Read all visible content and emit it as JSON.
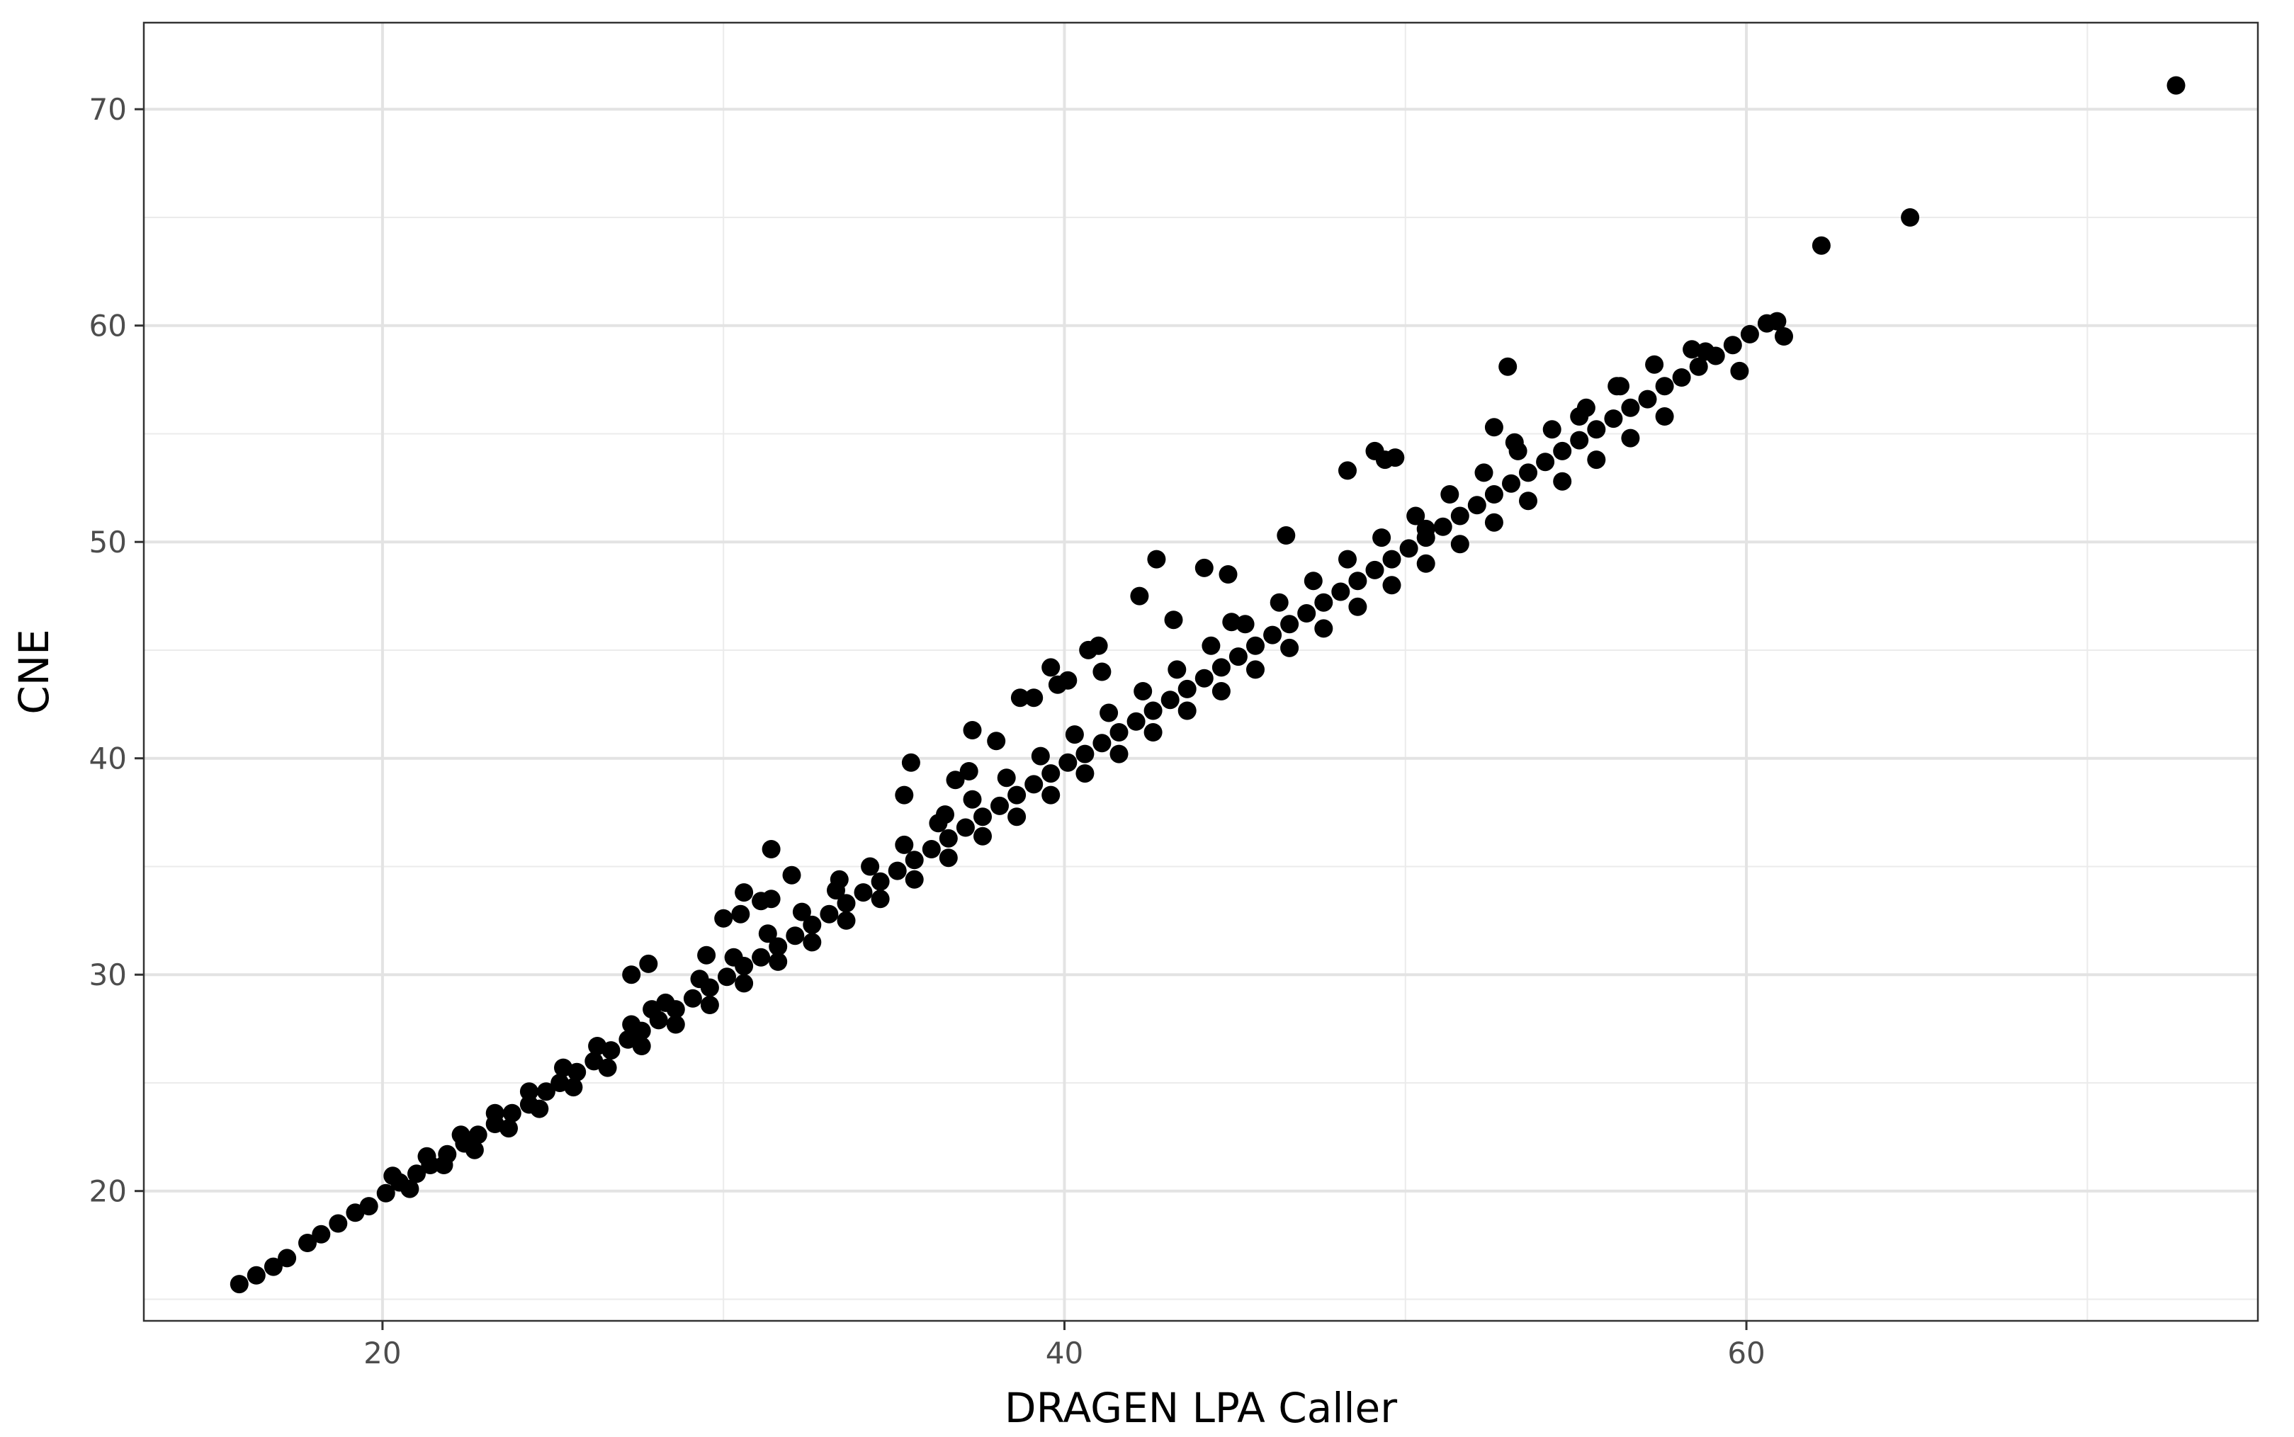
{
  "chart_data": {
    "type": "scatter",
    "xlabel": "DRAGEN LPA Caller",
    "ylabel": "CNE",
    "xlim": [
      13,
      75
    ],
    "ylim": [
      14,
      74
    ],
    "x_major_ticks": [
      20,
      40,
      60
    ],
    "x_minor_ticks": [
      30,
      50,
      70
    ],
    "y_major_ticks": [
      20,
      30,
      40,
      50,
      60,
      70
    ],
    "y_minor_ticks": [
      15,
      25,
      35,
      45,
      55,
      65
    ],
    "grid": true,
    "legend": "none",
    "point_color": "#000000",
    "points": [
      [
        15.8,
        15.7
      ],
      [
        16.3,
        16.1
      ],
      [
        16.8,
        16.5
      ],
      [
        17.2,
        16.9
      ],
      [
        17.8,
        17.6
      ],
      [
        18.2,
        18.0
      ],
      [
        18.7,
        18.5
      ],
      [
        19.2,
        19.0
      ],
      [
        19.6,
        19.3
      ],
      [
        20.1,
        19.9
      ],
      [
        20.5,
        20.4
      ],
      [
        21.0,
        20.8
      ],
      [
        21.4,
        21.2
      ],
      [
        21.9,
        21.7
      ],
      [
        22.4,
        22.2
      ],
      [
        22.8,
        22.6
      ],
      [
        23.3,
        23.1
      ],
      [
        23.8,
        23.6
      ],
      [
        24.3,
        24.0
      ],
      [
        24.8,
        24.6
      ],
      [
        25.2,
        25.0
      ],
      [
        25.7,
        25.5
      ],
      [
        26.2,
        26.0
      ],
      [
        26.7,
        26.5
      ],
      [
        27.2,
        27.0
      ],
      [
        27.6,
        27.4
      ],
      [
        28.1,
        27.9
      ],
      [
        28.6,
        28.4
      ],
      [
        29.1,
        28.9
      ],
      [
        29.6,
        29.4
      ],
      [
        30.1,
        29.9
      ],
      [
        30.6,
        30.4
      ],
      [
        31.1,
        30.8
      ],
      [
        31.6,
        31.3
      ],
      [
        32.1,
        31.8
      ],
      [
        32.6,
        32.3
      ],
      [
        33.1,
        32.8
      ],
      [
        33.6,
        33.3
      ],
      [
        34.1,
        33.8
      ],
      [
        34.6,
        34.3
      ],
      [
        35.1,
        34.8
      ],
      [
        35.6,
        35.3
      ],
      [
        36.1,
        35.8
      ],
      [
        36.6,
        36.3
      ],
      [
        37.1,
        36.8
      ],
      [
        37.6,
        37.3
      ],
      [
        38.1,
        37.8
      ],
      [
        38.6,
        38.3
      ],
      [
        39.1,
        38.8
      ],
      [
        39.6,
        39.3
      ],
      [
        40.1,
        39.8
      ],
      [
        40.6,
        40.2
      ],
      [
        41.1,
        40.7
      ],
      [
        41.6,
        41.2
      ],
      [
        42.1,
        41.7
      ],
      [
        42.6,
        42.2
      ],
      [
        43.1,
        42.7
      ],
      [
        43.6,
        43.2
      ],
      [
        44.1,
        43.7
      ],
      [
        44.6,
        44.2
      ],
      [
        45.1,
        44.7
      ],
      [
        45.6,
        45.2
      ],
      [
        46.1,
        45.7
      ],
      [
        46.6,
        46.2
      ],
      [
        47.1,
        46.7
      ],
      [
        47.6,
        47.2
      ],
      [
        48.1,
        47.7
      ],
      [
        48.6,
        48.2
      ],
      [
        49.1,
        48.7
      ],
      [
        49.6,
        49.2
      ],
      [
        50.1,
        49.7
      ],
      [
        50.6,
        50.2
      ],
      [
        51.1,
        50.7
      ],
      [
        51.6,
        51.2
      ],
      [
        52.1,
        51.7
      ],
      [
        52.6,
        52.2
      ],
      [
        53.1,
        52.7
      ],
      [
        53.6,
        53.2
      ],
      [
        54.1,
        53.7
      ],
      [
        54.6,
        54.2
      ],
      [
        55.1,
        54.7
      ],
      [
        55.6,
        55.2
      ],
      [
        56.1,
        55.7
      ],
      [
        56.6,
        56.2
      ],
      [
        57.1,
        56.6
      ],
      [
        57.6,
        57.2
      ],
      [
        58.1,
        57.6
      ],
      [
        58.6,
        58.1
      ],
      [
        59.1,
        58.6
      ],
      [
        59.6,
        59.1
      ],
      [
        60.1,
        59.6
      ],
      [
        60.6,
        60.1
      ],
      [
        61.1,
        59.5
      ],
      [
        20.8,
        20.1
      ],
      [
        21.8,
        21.2
      ],
      [
        22.7,
        21.9
      ],
      [
        23.7,
        22.9
      ],
      [
        24.6,
        23.8
      ],
      [
        25.6,
        24.8
      ],
      [
        26.6,
        25.7
      ],
      [
        27.6,
        26.7
      ],
      [
        28.6,
        27.7
      ],
      [
        29.6,
        28.6
      ],
      [
        30.6,
        29.6
      ],
      [
        31.6,
        30.6
      ],
      [
        32.6,
        31.5
      ],
      [
        33.6,
        32.5
      ],
      [
        34.6,
        33.5
      ],
      [
        35.6,
        34.4
      ],
      [
        36.6,
        35.4
      ],
      [
        37.6,
        36.4
      ],
      [
        38.6,
        37.3
      ],
      [
        39.6,
        38.3
      ],
      [
        40.6,
        39.3
      ],
      [
        41.6,
        40.2
      ],
      [
        42.6,
        41.2
      ],
      [
        43.6,
        42.2
      ],
      [
        44.6,
        43.1
      ],
      [
        45.6,
        44.1
      ],
      [
        46.6,
        45.1
      ],
      [
        47.6,
        46.0
      ],
      [
        48.6,
        47.0
      ],
      [
        49.6,
        48.0
      ],
      [
        50.6,
        49.0
      ],
      [
        51.6,
        49.9
      ],
      [
        52.6,
        50.9
      ],
      [
        53.6,
        51.9
      ],
      [
        54.6,
        52.8
      ],
      [
        55.6,
        53.8
      ],
      [
        56.6,
        54.8
      ],
      [
        57.6,
        55.8
      ],
      [
        20.3,
        20.7
      ],
      [
        21.3,
        21.6
      ],
      [
        22.3,
        22.6
      ],
      [
        23.3,
        23.6
      ],
      [
        24.3,
        24.6
      ],
      [
        25.3,
        25.7
      ],
      [
        26.3,
        26.7
      ],
      [
        27.3,
        27.7
      ],
      [
        28.3,
        28.7
      ],
      [
        29.3,
        29.8
      ],
      [
        30.3,
        30.8
      ],
      [
        31.3,
        31.9
      ],
      [
        32.3,
        32.9
      ],
      [
        33.3,
        33.9
      ],
      [
        34.3,
        35.0
      ],
      [
        35.3,
        36.0
      ],
      [
        36.3,
        37.0
      ],
      [
        37.3,
        38.1
      ],
      [
        38.3,
        39.1
      ],
      [
        39.3,
        40.1
      ],
      [
        40.3,
        41.1
      ],
      [
        41.3,
        42.1
      ],
      [
        42.3,
        43.1
      ],
      [
        43.3,
        44.1
      ],
      [
        44.3,
        45.2
      ],
      [
        45.3,
        46.2
      ],
      [
        46.3,
        47.2
      ],
      [
        47.3,
        48.2
      ],
      [
        48.3,
        49.2
      ],
      [
        49.3,
        50.2
      ],
      [
        50.3,
        51.2
      ],
      [
        51.3,
        52.2
      ],
      [
        52.3,
        53.2
      ],
      [
        53.3,
        54.2
      ],
      [
        54.3,
        55.2
      ],
      [
        55.3,
        56.2
      ],
      [
        56.3,
        57.2
      ],
      [
        57.3,
        58.2
      ],
      [
        27.3,
        30.0
      ],
      [
        27.8,
        30.5
      ],
      [
        29.5,
        30.9
      ],
      [
        30.0,
        32.6
      ],
      [
        30.5,
        32.8
      ],
      [
        30.6,
        33.8
      ],
      [
        31.1,
        33.4
      ],
      [
        31.4,
        33.5
      ],
      [
        31.4,
        35.8
      ],
      [
        32.0,
        34.6
      ],
      [
        35.3,
        38.3
      ],
      [
        35.5,
        39.8
      ],
      [
        36.8,
        39.0
      ],
      [
        37.2,
        39.4
      ],
      [
        37.3,
        41.3
      ],
      [
        38.0,
        40.8
      ],
      [
        38.7,
        42.8
      ],
      [
        39.1,
        42.8
      ],
      [
        39.6,
        44.2
      ],
      [
        39.8,
        43.4
      ],
      [
        40.1,
        43.6
      ],
      [
        40.7,
        45.0
      ],
      [
        41.0,
        45.2
      ],
      [
        41.1,
        44.0
      ],
      [
        42.2,
        47.5
      ],
      [
        42.7,
        49.2
      ],
      [
        43.2,
        46.4
      ],
      [
        44.1,
        48.8
      ],
      [
        44.8,
        48.5
      ],
      [
        46.5,
        50.3
      ],
      [
        48.3,
        53.3
      ],
      [
        49.1,
        54.2
      ],
      [
        49.4,
        53.8
      ],
      [
        49.7,
        53.9
      ],
      [
        50.6,
        50.6
      ],
      [
        52.6,
        55.3
      ],
      [
        53.0,
        58.1
      ],
      [
        53.2,
        54.6
      ],
      [
        55.1,
        55.8
      ],
      [
        56.2,
        57.2
      ],
      [
        58.4,
        58.9
      ],
      [
        58.8,
        58.8
      ],
      [
        59.8,
        57.9
      ],
      [
        60.9,
        60.2
      ],
      [
        27.9,
        28.4
      ],
      [
        36.5,
        37.4
      ],
      [
        33.4,
        34.4
      ],
      [
        44.9,
        46.3
      ],
      [
        62.2,
        63.7
      ],
      [
        64.8,
        65.0
      ],
      [
        72.6,
        71.1
      ]
    ]
  }
}
